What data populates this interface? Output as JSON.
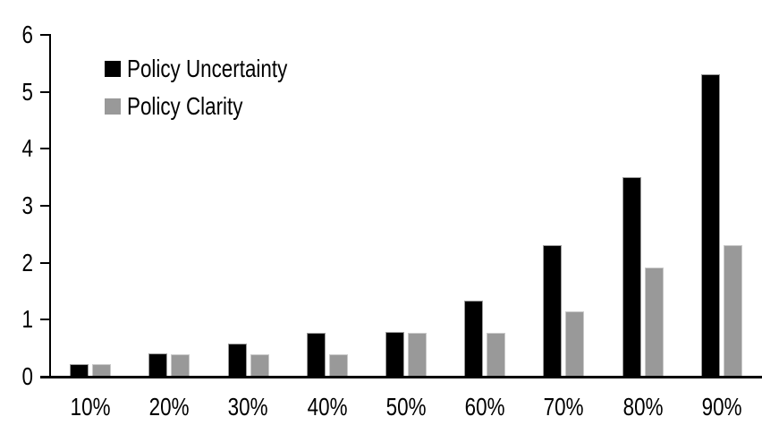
{
  "chart_data": {
    "type": "bar",
    "title": "",
    "xlabel": "",
    "ylabel": "",
    "categories": [
      "10%",
      "20%",
      "30%",
      "40%",
      "50%",
      "60%",
      "70%",
      "80%",
      "90%"
    ],
    "series": [
      {
        "name": "Policy Uncertainty",
        "color": "#000000",
        "values": [
          0.2,
          0.4,
          0.57,
          0.75,
          0.78,
          1.32,
          2.3,
          3.5,
          5.3
        ]
      },
      {
        "name": "Policy Clarity",
        "color": "#999999",
        "values": [
          0.2,
          0.38,
          0.38,
          0.38,
          0.76,
          0.76,
          1.13,
          1.9,
          2.3
        ]
      }
    ],
    "ylim": [
      0,
      6
    ],
    "y_ticks": [
      0,
      1,
      2,
      3,
      4,
      5,
      6
    ],
    "grid": false,
    "legend_position": "inside-top-left",
    "axis_color": "#000000",
    "background_color": "#ffffff"
  }
}
